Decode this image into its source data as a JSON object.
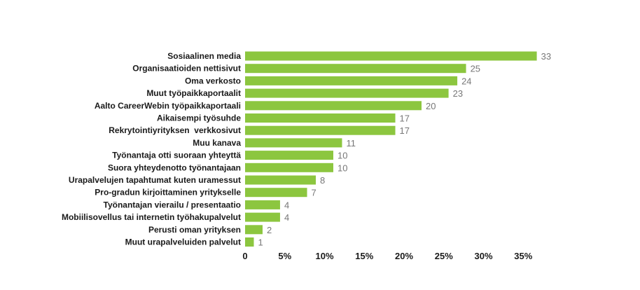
{
  "chart_data": {
    "type": "bar",
    "orientation": "horizontal",
    "title": "",
    "xlabel": "",
    "ylabel": "",
    "categories": [
      "Sosiaalinen media",
      "Organisaatioiden nettisivut",
      "Oma verkosto",
      "Muut työpaikkaportaalit",
      "Aalto CareerWebin työpaikkaportaali",
      "Aikaisempi työsuhde",
      "Rekrytointiyrityksen  verkkosivut",
      "Muu kanava",
      "Työnantaja otti suoraan yhteyttä",
      "Suora yhteydenotto työnantajaan",
      "Urapalvelujen tapahtumat kuten uramessut",
      "Pro-gradun kirjoittaminen yritykselle",
      "Työnantajan vierailu / presentaatio",
      "Mobiilisovellus tai internetin työhakupalvelut",
      "Perusti oman yrityksen",
      "Muut urapalveluiden palvelut"
    ],
    "values": [
      33,
      25,
      24,
      23,
      20,
      17,
      17,
      11,
      10,
      10,
      8,
      7,
      4,
      4,
      2,
      1
    ],
    "percent_values": [
      36.7,
      27.8,
      26.7,
      25.6,
      22.2,
      18.9,
      18.9,
      12.2,
      11.1,
      11.1,
      8.9,
      7.8,
      4.4,
      4.4,
      2.2,
      1.1
    ],
    "xlim": [
      0,
      37
    ],
    "x_ticks": [
      "0",
      "5%",
      "10%",
      "15%",
      "20%",
      "25%",
      "30%",
      "35%"
    ],
    "x_tick_values": [
      0,
      5,
      10,
      15,
      20,
      25,
      30,
      35
    ],
    "grid": false,
    "legend": "none",
    "bar_color": "#8cc63f"
  }
}
